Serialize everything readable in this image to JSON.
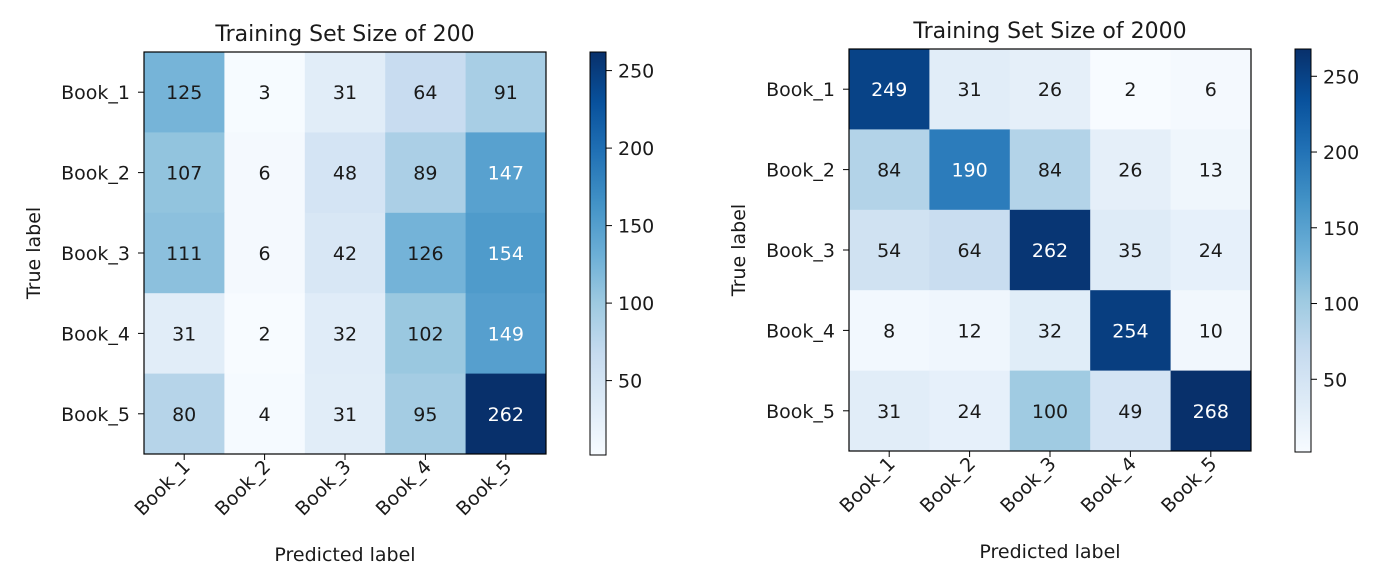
{
  "chart_data": [
    {
      "type": "heatmap",
      "title": "Training Set Size of 200",
      "xlabel": "Predicted label",
      "ylabel": "True label",
      "x_categories": [
        "Book_1",
        "Book_2",
        "Book_3",
        "Book_4",
        "Book_5"
      ],
      "y_categories": [
        "Book_1",
        "Book_2",
        "Book_3",
        "Book_4",
        "Book_5"
      ],
      "values": [
        [
          125,
          3,
          31,
          64,
          91
        ],
        [
          107,
          6,
          48,
          89,
          147
        ],
        [
          111,
          6,
          42,
          126,
          154
        ],
        [
          31,
          2,
          32,
          102,
          149
        ],
        [
          80,
          4,
          31,
          95,
          262
        ]
      ],
      "colormap": "Blues",
      "colorbar": {
        "range": [
          2,
          262
        ],
        "ticks": [
          50,
          100,
          150,
          200,
          250
        ]
      }
    },
    {
      "type": "heatmap",
      "title": "Training Set Size of 2000",
      "xlabel": "Predicted label",
      "ylabel": "True label",
      "x_categories": [
        "Book_1",
        "Book_2",
        "Book_3",
        "Book_4",
        "Book_5"
      ],
      "y_categories": [
        "Book_1",
        "Book_2",
        "Book_3",
        "Book_4",
        "Book_5"
      ],
      "values": [
        [
          249,
          31,
          26,
          2,
          6
        ],
        [
          84,
          190,
          84,
          26,
          13
        ],
        [
          54,
          64,
          262,
          35,
          24
        ],
        [
          8,
          12,
          32,
          254,
          10
        ],
        [
          31,
          24,
          100,
          49,
          268
        ]
      ],
      "colormap": "Blues",
      "colorbar": {
        "range": [
          2,
          268
        ],
        "ticks": [
          50,
          100,
          150,
          200,
          250
        ]
      }
    }
  ]
}
